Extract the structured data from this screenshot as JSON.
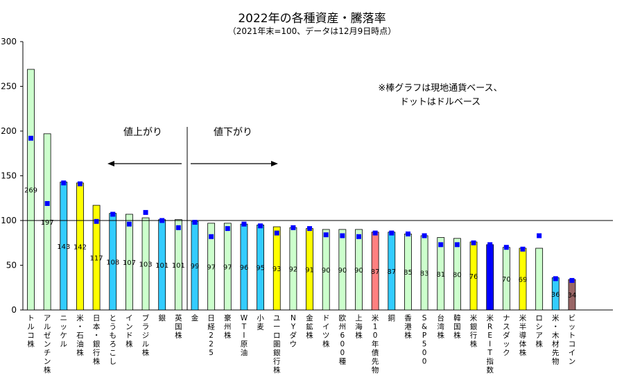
{
  "chart_data": {
    "type": "bar",
    "title": "2022年の各種資産・騰落率",
    "subtitle": "（2021年末=100、データは12月9日時点）",
    "note_lines": [
      "※棒グラフは現地通貨ベース、",
      "ドットはドルベース"
    ],
    "up_label": "値上がり",
    "down_label": "値下がり",
    "ylim": [
      0,
      300
    ],
    "yticks": [
      0,
      50,
      100,
      150,
      200,
      250,
      300
    ],
    "reference_line": 100,
    "grid": false,
    "series": [
      {
        "name": "現地通貨ベース",
        "style": "bar"
      },
      {
        "name": "ドルベース",
        "style": "dot"
      }
    ],
    "categories": [
      "トルコ株",
      "アルゼンチン株",
      "ニッケル",
      "米・石油株",
      "日本・銀行株",
      "とうもろこし",
      "インド株",
      "ブラジル株",
      "銀",
      "英国株",
      "金",
      "日経225",
      "豪州株",
      "WTI原油",
      "小麦",
      "ユーロ圏銀行株",
      "NYダウ",
      "金鉱株",
      "ドイツ株",
      "欧州600種",
      "上海株",
      "米10年債先物",
      "銅",
      "香港株",
      "S&P500",
      "台湾株",
      "韓国株",
      "米銀行株",
      "米REIT指数",
      "ナスダック",
      "米半導体株",
      "ロシア株",
      "米・木材先物",
      "ビットコイン"
    ],
    "values": [
      269,
      197,
      143,
      142,
      117,
      108,
      107,
      103,
      101,
      101,
      99,
      97,
      97,
      96,
      95,
      93,
      92,
      91,
      90,
      90,
      90,
      87,
      87,
      85,
      83,
      81,
      80,
      76,
      73,
      70,
      69,
      69,
      36,
      34
    ],
    "value_labels": [
      "269",
      "197",
      "143",
      "142",
      "117",
      "108",
      "107",
      "103",
      "101",
      "101",
      "99",
      "97",
      "97",
      "96",
      "95",
      "93",
      "92",
      "91",
      "90",
      "90",
      "90",
      "87",
      "87",
      "85",
      "83",
      "81",
      "80",
      "76",
      "",
      "70",
      "69",
      "",
      "36",
      "34"
    ],
    "dots": [
      192,
      119,
      142,
      141,
      99,
      107,
      96,
      109,
      100,
      92,
      98,
      82,
      91,
      96,
      94,
      86,
      92,
      91,
      84,
      83,
      82,
      86,
      86,
      85,
      83,
      73,
      73,
      75,
      73,
      70,
      68,
      83,
      35,
      33
    ],
    "bar_colors": [
      "#ccffcc",
      "#ccffcc",
      "#33ccff",
      "#ffff00",
      "#ffff00",
      "#33ccff",
      "#ccffcc",
      "#ccffcc",
      "#33ccff",
      "#ccffcc",
      "#33ccff",
      "#ccffcc",
      "#ccffcc",
      "#33ccff",
      "#33ccff",
      "#ffff00",
      "#ccffcc",
      "#ffff00",
      "#ccffcc",
      "#ccffcc",
      "#ccffcc",
      "#ff8080",
      "#33ccff",
      "#ccffcc",
      "#ccffcc",
      "#ccffcc",
      "#ccffcc",
      "#ffff00",
      "#0000ff",
      "#ccffcc",
      "#ffff00",
      "#ccffcc",
      "#33ccff",
      "#996666"
    ],
    "dot_color": "#0000ff",
    "axis_color": "#000000"
  }
}
